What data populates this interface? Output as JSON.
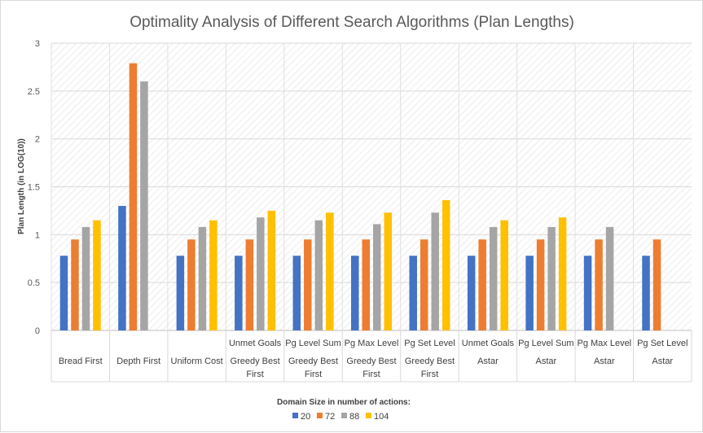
{
  "chart_data": {
    "type": "bar",
    "title": "Optimality Analysis of Different Search Algorithms (Plan Lengths)",
    "ylabel": "Plan Length (in LOG(10))",
    "ylim": [
      0,
      3
    ],
    "yticks": [
      "0",
      "0.5",
      "1",
      "1.5",
      "2",
      "2.5",
      "3"
    ],
    "categories": [
      {
        "line1": "",
        "line2": "Bread First",
        "line3": ""
      },
      {
        "line1": "",
        "line2": "Depth First",
        "line3": ""
      },
      {
        "line1": "",
        "line2": "Uniform Cost",
        "line3": ""
      },
      {
        "line1": "Unmet Goals",
        "line2": "Greedy Best",
        "line3": "First"
      },
      {
        "line1": "Pg Level Sum",
        "line2": "Greedy Best",
        "line3": "First"
      },
      {
        "line1": "Pg Max Level",
        "line2": "Greedy Best",
        "line3": "First"
      },
      {
        "line1": "Pg Set Level",
        "line2": "Greedy Best",
        "line3": "First"
      },
      {
        "line1": "Unmet Goals",
        "line2": "Astar",
        "line3": ""
      },
      {
        "line1": "Pg Level Sum",
        "line2": "Astar",
        "line3": ""
      },
      {
        "line1": "Pg Max Level",
        "line2": "Astar",
        "line3": ""
      },
      {
        "line1": "Pg Set Level",
        "line2": "Astar",
        "line3": ""
      }
    ],
    "legend_title": "Domain Size in number of actions:",
    "legend_position": "bottom",
    "series": [
      {
        "name": "20",
        "color": "#4472c4",
        "values": [
          0.78,
          1.3,
          0.78,
          0.78,
          0.78,
          0.78,
          0.78,
          0.78,
          0.78,
          0.78,
          0.78
        ]
      },
      {
        "name": "72",
        "color": "#ed7d31",
        "values": [
          0.95,
          2.79,
          0.95,
          0.95,
          0.95,
          0.95,
          0.95,
          0.95,
          0.95,
          0.95,
          0.95
        ]
      },
      {
        "name": "88",
        "color": "#a5a5a5",
        "values": [
          1.08,
          2.6,
          1.08,
          1.18,
          1.15,
          1.11,
          1.23,
          1.08,
          1.08,
          1.08,
          null
        ]
      },
      {
        "name": "104",
        "color": "#ffc000",
        "values": [
          1.15,
          null,
          1.15,
          1.25,
          1.23,
          1.23,
          1.36,
          1.15,
          1.18,
          null,
          null
        ]
      }
    ],
    "grid": true
  }
}
